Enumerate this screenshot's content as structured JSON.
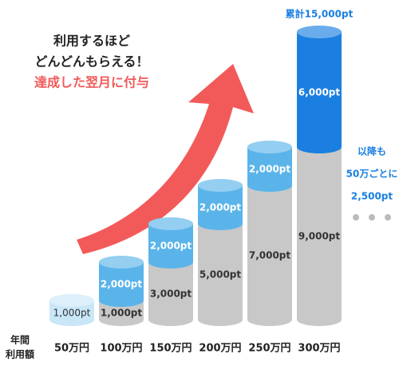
{
  "chart_data": {
    "type": "bar",
    "stacked": true,
    "title_lines": [
      "利用するほど",
      "どんどんもらえる！",
      "達成した翌月に付与"
    ],
    "x_label_lines": [
      "年間",
      "利用額"
    ],
    "categories": [
      "50万円",
      "100万円",
      "150万円",
      "200万円",
      "250万円",
      "300万円"
    ],
    "series": [
      {
        "colors": [
          "#c8c8c8",
          "#c8c8c8",
          "#c8c8c8",
          "#c8c8c8",
          "#c8c8c8",
          "#c8c8c8"
        ],
        "values": [
          null,
          1000,
          3000,
          5000,
          7000,
          9000
        ],
        "value_labels": [
          null,
          "1,000pt",
          "3,000pt",
          "5,000pt",
          "7,000pt",
          "9,000pt"
        ]
      },
      {
        "colors": [
          "#c9e7f7",
          "#5ab4ea",
          "#5ab4ea",
          "#5ab4ea",
          "#5ab4ea",
          "#1a7fe0"
        ],
        "values": [
          1000,
          2000,
          2000,
          2000,
          2000,
          6000
        ],
        "value_labels": [
          "1,000pt",
          "2,000pt",
          "2,000pt",
          "2,000pt",
          "2,000pt",
          "6,000pt"
        ]
      }
    ],
    "annotations": [
      "累計15,000pt",
      "以降も",
      "50万ごとに",
      "2,500pt"
    ]
  }
}
